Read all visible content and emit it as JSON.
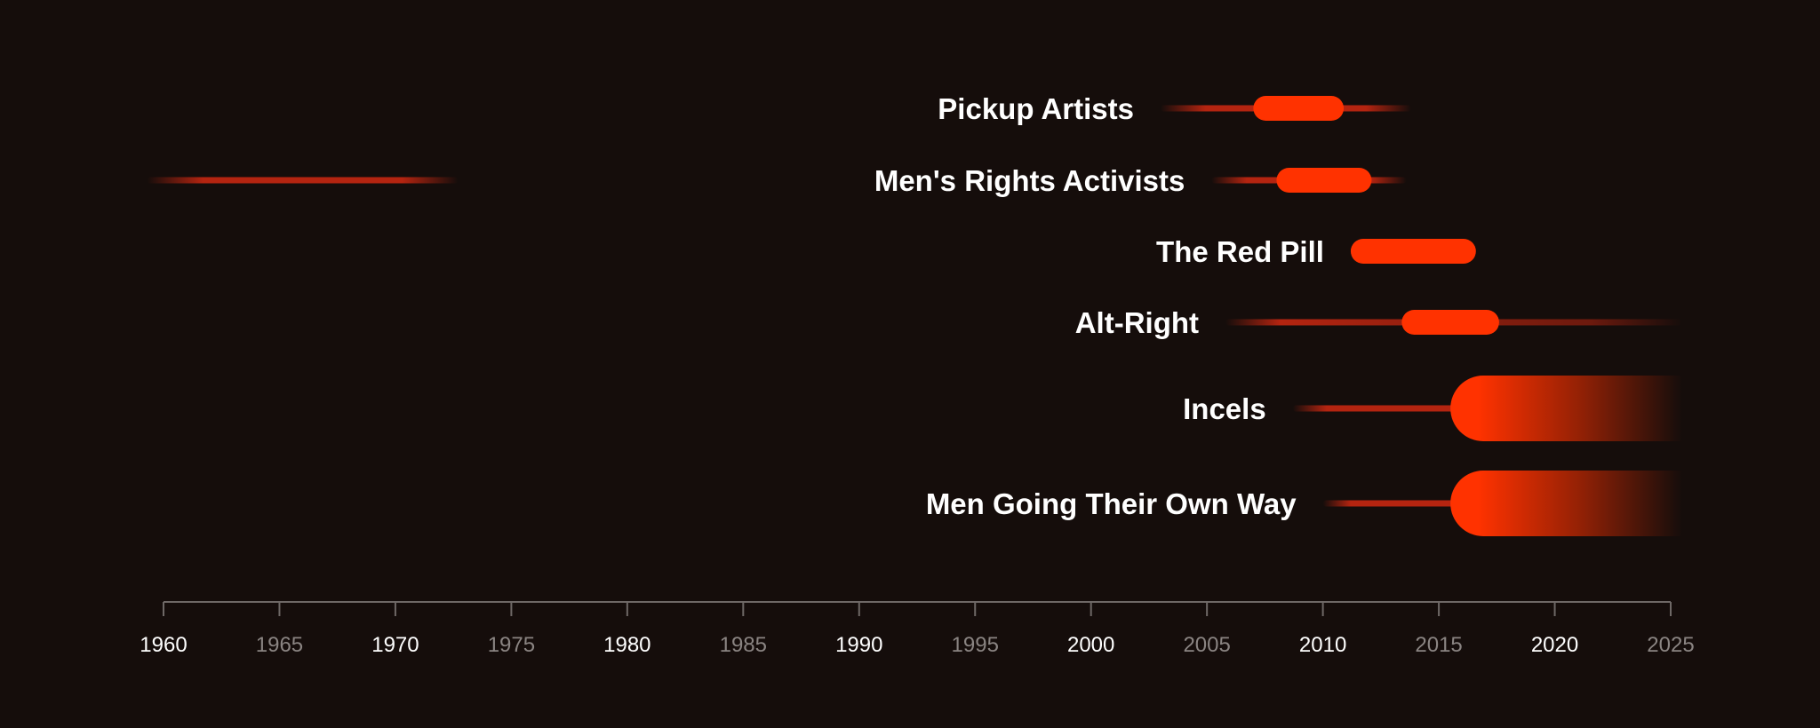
{
  "chart_data": {
    "type": "timeline",
    "x_axis": {
      "range": [
        1960,
        2025
      ],
      "ticks": [
        {
          "label": "1960",
          "value": 1960,
          "emphasis": "major"
        },
        {
          "label": "1965",
          "value": 1965,
          "emphasis": "minor"
        },
        {
          "label": "1970",
          "value": 1970,
          "emphasis": "major"
        },
        {
          "label": "1975",
          "value": 1975,
          "emphasis": "minor"
        },
        {
          "label": "1980",
          "value": 1980,
          "emphasis": "major"
        },
        {
          "label": "1985",
          "value": 1985,
          "emphasis": "minor"
        },
        {
          "label": "1990",
          "value": 1990,
          "emphasis": "major"
        },
        {
          "label": "1995",
          "value": 1995,
          "emphasis": "minor"
        },
        {
          "label": "2000",
          "value": 2000,
          "emphasis": "major"
        },
        {
          "label": "2005",
          "value": 2005,
          "emphasis": "minor"
        },
        {
          "label": "2010",
          "value": 2010,
          "emphasis": "major"
        },
        {
          "label": "2015",
          "value": 2015,
          "emphasis": "minor"
        },
        {
          "label": "2020",
          "value": 2020,
          "emphasis": "major"
        },
        {
          "label": "2025",
          "value": 2025,
          "emphasis": "minor"
        }
      ]
    },
    "groups": [
      {
        "name": "Pickup Artists",
        "thin_span": [
          2003,
          2013.8
        ],
        "peak_span": [
          2007,
          2010.9
        ],
        "peak_size": "small",
        "fade_out": false
      },
      {
        "name": "Men's Rights Activists",
        "thin_span": [
          2005.2,
          2013.6
        ],
        "peak_span": [
          2008,
          2012.1
        ],
        "peak_size": "small",
        "fade_out": false,
        "early_span": [
          1959.3,
          1972.7
        ]
      },
      {
        "name": "The Red Pill",
        "peak_span": [
          2011.2,
          2016.6
        ],
        "peak_size": "small",
        "fade_out": false
      },
      {
        "name": "Alt-Right",
        "thin_span": [
          2005.8,
          2025.5
        ],
        "peak_span": [
          2013.4,
          2017.6
        ],
        "peak_size": "small",
        "fade_out": true
      },
      {
        "name": "Incels",
        "thin_span": [
          2008.7,
          2016
        ],
        "peak_span": [
          2015.5,
          2025.5
        ],
        "peak_size": "large",
        "fade_out": true
      },
      {
        "name": "Men Going Their Own Way",
        "thin_span": [
          2010,
          2016
        ],
        "peak_span": [
          2015.5,
          2025.5
        ],
        "peak_size": "large",
        "fade_out": true
      }
    ],
    "colors": {
      "background": "#150d0b",
      "peak": "#ff3200",
      "thin_line": "#b42410",
      "axis": "#6e6866",
      "label": "#ffffff",
      "tick_major": "#ffffff",
      "tick_minor": "#8a8482"
    },
    "legend": "none",
    "grid": false
  }
}
